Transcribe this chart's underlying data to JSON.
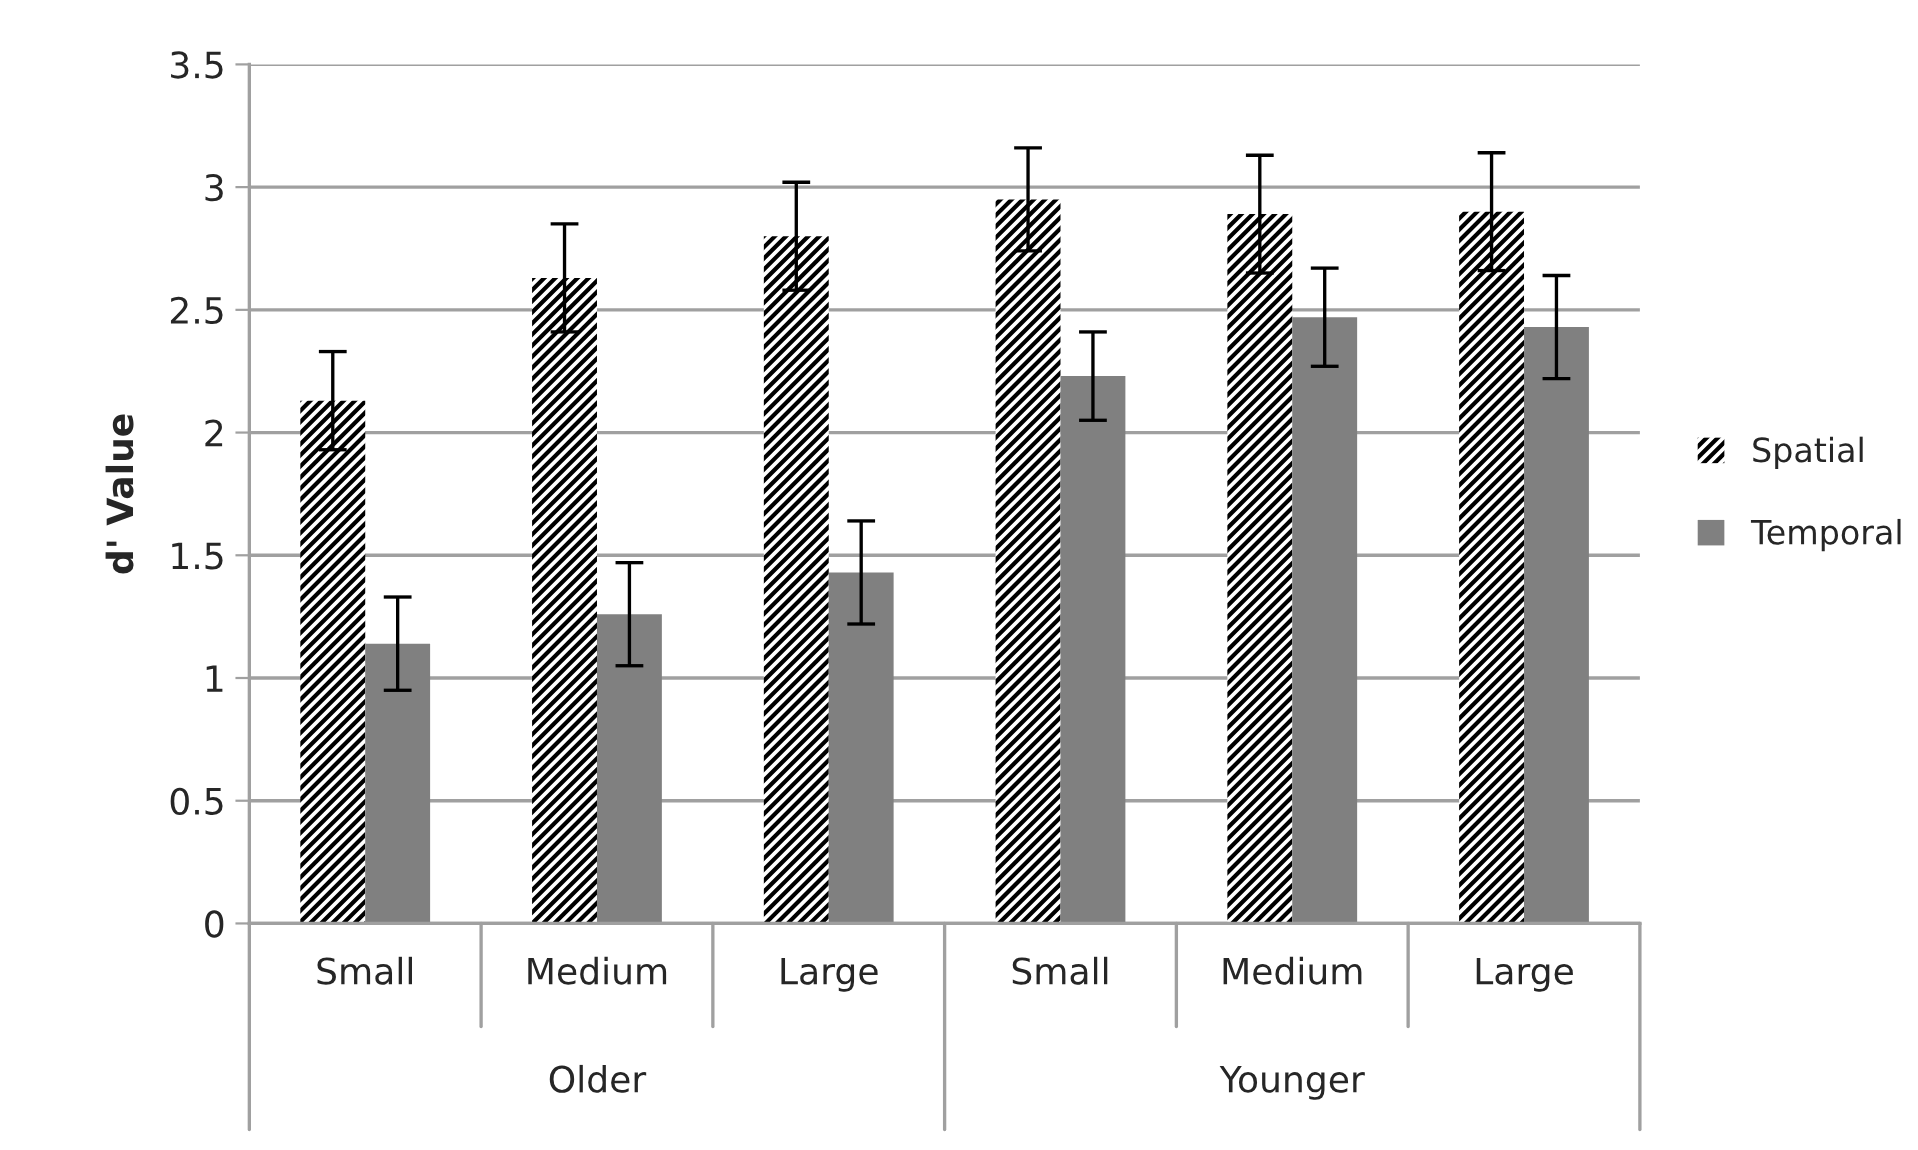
{
  "chart_data": {
    "type": "bar",
    "ylabel": "d' Value",
    "categories": [
      "Small",
      "Medium",
      "Large",
      "Small",
      "Medium",
      "Large"
    ],
    "series": [
      {
        "name": "Spatial",
        "color": "#000000",
        "values": [
          2.13,
          2.63,
          2.8,
          2.95,
          2.89,
          2.9
        ],
        "errors": [
          0.2,
          0.22,
          0.22,
          0.21,
          0.24,
          0.24
        ]
      },
      {
        "name": "Temporal",
        "color": "#808080",
        "values": [
          1.14,
          1.26,
          1.43,
          2.23,
          2.47,
          2.43
        ],
        "errors": [
          0.19,
          0.21,
          0.21,
          0.18,
          0.2,
          0.21
        ]
      }
    ],
    "annotations": [
      "Older",
      "Younger"
    ],
    "ylim": [
      0,
      3.5
    ],
    "yticks": [
      0,
      0.5,
      1,
      1.5,
      2,
      2.5,
      3,
      3.5
    ],
    "grid": "y",
    "legend": "right"
  }
}
